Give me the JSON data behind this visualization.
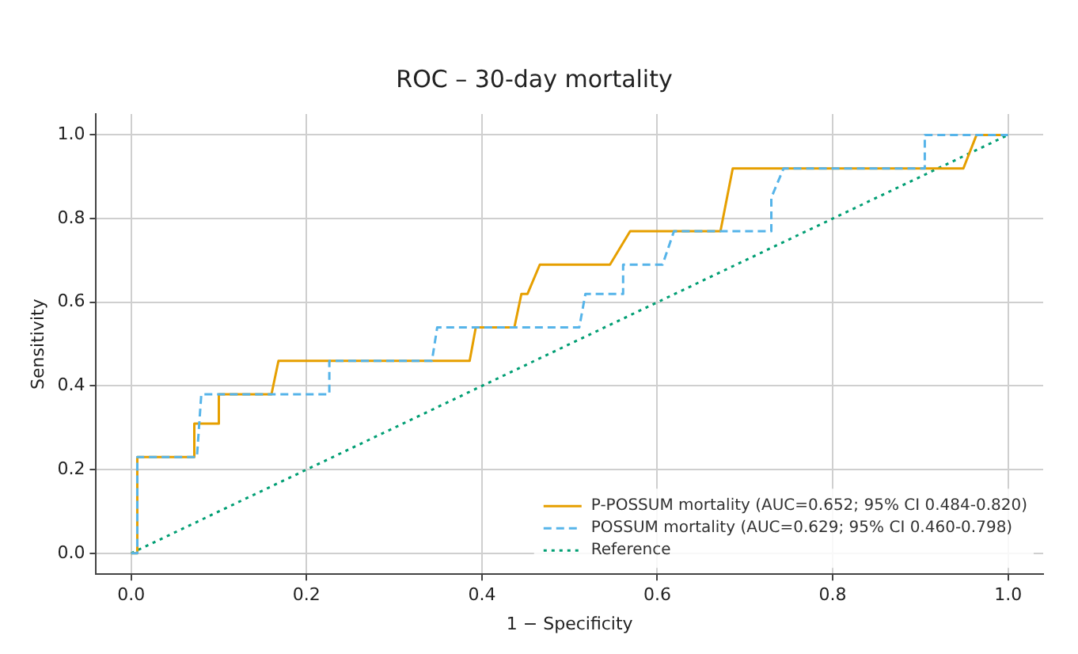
{
  "chart_data": {
    "type": "line",
    "title": "ROC – 30-day mortality",
    "xlabel": "1 − Specificity",
    "ylabel": "Sensitivity",
    "xlim": [
      -0.04,
      1.04
    ],
    "ylim": [
      -0.05,
      1.05
    ],
    "xticks": [
      {
        "value": 0,
        "label": "0.0"
      },
      {
        "value": 0.2,
        "label": "0.2"
      },
      {
        "value": 0.4,
        "label": "0.4"
      },
      {
        "value": 0.6,
        "label": "0.6"
      },
      {
        "value": 0.8,
        "label": "0.8"
      },
      {
        "value": 1,
        "label": "1.0"
      }
    ],
    "yticks": [
      {
        "value": 0,
        "label": "0.0"
      },
      {
        "value": 0.2,
        "label": "0.2"
      },
      {
        "value": 0.4,
        "label": "0.4"
      },
      {
        "value": 0.6,
        "label": "0.6"
      },
      {
        "value": 0.8,
        "label": "0.8"
      },
      {
        "value": 1,
        "label": "1.0"
      }
    ],
    "grid": true,
    "legend": "bottom right",
    "marker": "none",
    "series": [
      {
        "name": "P-POSSUM mortality (AUC=0.652; 95% CI 0.484-0.820)",
        "color": "#e69f00",
        "line_style": "solid",
        "x": [
          0,
          0.007,
          0.007,
          0.072,
          0.072,
          0.1,
          0.1,
          0.16,
          0.168,
          0.386,
          0.393,
          0.437,
          0.445,
          0.452,
          0.466,
          0.546,
          0.569,
          0.672,
          0.686,
          0.949,
          0.964,
          1
        ],
        "values": [
          0,
          0,
          0.23,
          0.23,
          0.31,
          0.31,
          0.38,
          0.38,
          0.46,
          0.46,
          0.54,
          0.54,
          0.62,
          0.62,
          0.69,
          0.69,
          0.77,
          0.77,
          0.92,
          0.92,
          1,
          1
        ]
      },
      {
        "name": "POSSUM mortality (AUC=0.629; 95% CI 0.460-0.798)",
        "color": "#56b4e9",
        "line_style": "dashed",
        "x": [
          0,
          0.007,
          0.007,
          0.075,
          0.08,
          0.226,
          0.226,
          0.343,
          0.349,
          0.511,
          0.518,
          0.561,
          0.561,
          0.606,
          0.619,
          0.73,
          0.73,
          0.744,
          0.905,
          0.905,
          1
        ],
        "values": [
          0,
          0,
          0.23,
          0.23,
          0.38,
          0.38,
          0.46,
          0.46,
          0.54,
          0.54,
          0.62,
          0.62,
          0.69,
          0.69,
          0.77,
          0.77,
          0.85,
          0.92,
          0.92,
          1,
          1
        ]
      },
      {
        "name": "Reference",
        "color": "#009e73",
        "line_style": "dotted",
        "x": [
          0,
          1
        ],
        "values": [
          0,
          1
        ]
      }
    ]
  }
}
